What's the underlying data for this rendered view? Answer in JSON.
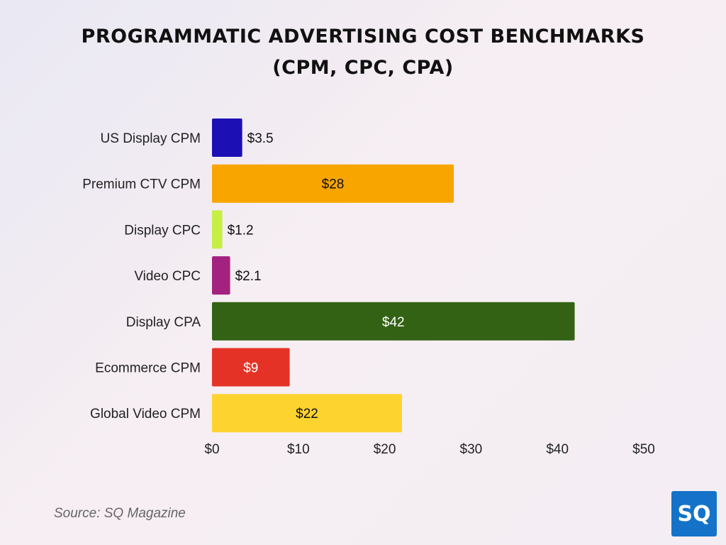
{
  "chart_data": {
    "type": "bar",
    "orientation": "horizontal",
    "title_lines": [
      "PROGRAMMATIC ADVERTISING COST BENCHMARKS",
      "(CPM, CPC, CPA)"
    ],
    "categories": [
      "US Display CPM",
      "Premium CTV CPM",
      "Display CPC",
      "Video CPC",
      "Display CPA",
      "Ecommerce CPM",
      "Global Video CPM"
    ],
    "values": [
      3.5,
      28,
      1.2,
      2.1,
      42,
      9,
      22
    ],
    "data_labels": [
      "$3.5",
      "$28",
      "$1.2",
      "$2.1",
      "$42",
      "$9",
      "$22"
    ],
    "colors": [
      "#1c0fb4",
      "#f9a500",
      "#c6ef45",
      "#a3227f",
      "#336214",
      "#e53227",
      "#fdd32f"
    ],
    "label_colors": [
      "#111111",
      "#111111",
      "#111111",
      "#111111",
      "#ffffff",
      "#ffffff",
      "#111111"
    ],
    "xlim": [
      0,
      50
    ],
    "xticks": [
      0,
      10,
      20,
      30,
      40,
      50
    ],
    "xtick_labels": [
      "$0",
      "$10",
      "$20",
      "$30",
      "$40",
      "$50"
    ],
    "grid": false,
    "legend": "none"
  },
  "source": "Source: SQ Magazine",
  "logo": "SQ"
}
